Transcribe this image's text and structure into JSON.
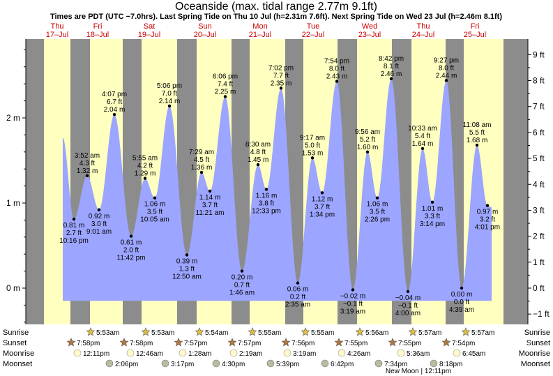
{
  "header": {
    "title": "Oceanside (max. tidal range 2.77m 9.1ft)",
    "subtitle": "Times are PDT (UTC −7.0hrs). Last Spring Tide on Thu 10 Jul (h=2.31m 7.6ft). Next Spring Tide on Wed 23 Jul (h=2.46m 8.1ft)"
  },
  "days": [
    {
      "name": "Thu",
      "date": "17–Jul",
      "x": 82
    },
    {
      "name": "Fri",
      "date": "18–Jul",
      "x": 140
    },
    {
      "name": "Sat",
      "date": "19–Jul",
      "x": 214
    },
    {
      "name": "Sun",
      "date": "20–Jul",
      "x": 294
    },
    {
      "name": "Mon",
      "date": "21–Jul",
      "x": 373
    },
    {
      "name": "Tue",
      "date": "22–Jul",
      "x": 449
    },
    {
      "name": "Wed",
      "date": "23–Jul",
      "x": 530
    },
    {
      "name": "Thu",
      "date": "24–Jul",
      "x": 607
    },
    {
      "name": "Fri",
      "date": "25–Jul",
      "x": 681
    }
  ],
  "chart_data": {
    "type": "area",
    "x_range": [
      0,
      792
    ],
    "ylim_m": [
      -0.45,
      2.95
    ],
    "meter_ticks": [
      {
        "v": 0,
        "label": "0 m"
      },
      {
        "v": 1,
        "label": "1 m"
      },
      {
        "v": 2,
        "label": "2 m"
      }
    ],
    "feet_ticks": [
      {
        "v": -1,
        "label": "−1 ft"
      },
      {
        "v": 0,
        "label": "0 ft"
      },
      {
        "v": 1,
        "label": "1 ft"
      },
      {
        "v": 2,
        "label": "2 ft"
      },
      {
        "v": 3,
        "label": "3 ft"
      },
      {
        "v": 4,
        "label": "4 ft"
      },
      {
        "v": 5,
        "label": "5 ft"
      },
      {
        "v": 6,
        "label": "6 ft"
      },
      {
        "v": 7,
        "label": "7 ft"
      },
      {
        "v": 8,
        "label": "8 ft"
      },
      {
        "v": 9,
        "label": "9 ft"
      }
    ],
    "night_bands": [
      [
        37,
        63
      ],
      [
        101,
        129
      ],
      [
        176,
        203
      ],
      [
        254,
        282
      ],
      [
        332,
        358
      ],
      [
        409,
        435
      ],
      [
        484,
        512
      ],
      [
        562,
        590
      ],
      [
        639,
        665
      ],
      [
        722,
        757
      ]
    ],
    "start": {
      "x": 90,
      "h": 1.77
    },
    "end": {
      "x": 705,
      "h": 0.95
    },
    "extremes": [
      {
        "x": 106,
        "h": 0.81,
        "m": "0.81 m",
        "ft": "2.7 ft",
        "time": "10:16 pm",
        "type": "low"
      },
      {
        "x": 125,
        "h": 1.32,
        "m": "1.32 m",
        "ft": "4.3 ft",
        "time": "3:52 am",
        "type": "high"
      },
      {
        "x": 142,
        "h": 0.92,
        "m": "0.92 m",
        "ft": "3.0 ft",
        "time": "9:01 am",
        "type": "low"
      },
      {
        "x": 164,
        "h": 2.04,
        "m": "2.04 m",
        "ft": "6.7 ft",
        "time": "4:07 pm",
        "type": "high"
      },
      {
        "x": 188,
        "h": 0.61,
        "m": "0.61 m",
        "ft": "2.0 ft",
        "time": "11:42 pm",
        "type": "low"
      },
      {
        "x": 208,
        "h": 1.29,
        "m": "1.29 m",
        "ft": "4.2 ft",
        "time": "5:55 am",
        "type": "high"
      },
      {
        "x": 222,
        "h": 1.06,
        "m": "1.06 m",
        "ft": "3.5 ft",
        "time": "10:05 am",
        "type": "low"
      },
      {
        "x": 243,
        "h": 2.14,
        "m": "2.14 m",
        "ft": "7.0 ft",
        "time": "5:06 pm",
        "type": "high"
      },
      {
        "x": 268,
        "h": 0.39,
        "m": "0.39 m",
        "ft": "1.3 ft",
        "time": "12:50 am",
        "type": "low"
      },
      {
        "x": 289,
        "h": 1.36,
        "m": "1.36 m",
        "ft": "4.5 ft",
        "time": "7:29 am",
        "type": "high"
      },
      {
        "x": 301,
        "h": 1.14,
        "m": "1.14 m",
        "ft": "3.7 ft",
        "time": "11:21 am",
        "type": "low"
      },
      {
        "x": 323,
        "h": 2.25,
        "m": "2.25 m",
        "ft": "7.4 ft",
        "time": "6:06 pm",
        "type": "high"
      },
      {
        "x": 347,
        "h": 0.2,
        "m": "0.20 m",
        "ft": "0.7 ft",
        "time": "1:46 am",
        "type": "low"
      },
      {
        "x": 370,
        "h": 1.45,
        "m": "1.45 m",
        "ft": "4.8 ft",
        "time": "8:30 am",
        "type": "high"
      },
      {
        "x": 382,
        "h": 1.16,
        "m": "1.16 m",
        "ft": "3.8 ft",
        "time": "12:33 pm",
        "type": "low"
      },
      {
        "x": 403,
        "h": 2.35,
        "m": "2.35 m",
        "ft": "7.7 ft",
        "time": "7:02 pm",
        "type": "high"
      },
      {
        "x": 427,
        "h": 0.06,
        "m": "0.06 m",
        "ft": "0.2 ft",
        "time": "2:35 am",
        "type": "low"
      },
      {
        "x": 448,
        "h": 1.53,
        "m": "1.53 m",
        "ft": "5.0 ft",
        "time": "9:17 am",
        "type": "high"
      },
      {
        "x": 462,
        "h": 1.12,
        "m": "1.12 m",
        "ft": "3.7 ft",
        "time": "1:34 pm",
        "type": "low"
      },
      {
        "x": 483,
        "h": 2.43,
        "m": "2.43 m",
        "ft": "8.0 ft",
        "time": "7:54 pm",
        "type": "high"
      },
      {
        "x": 506,
        "h": -0.02,
        "m": "−0.02 m",
        "ft": "−0.1 ft",
        "time": "3:19 am",
        "type": "low"
      },
      {
        "x": 527,
        "h": 1.6,
        "m": "1.60 m",
        "ft": "5.2 ft",
        "time": "9:56 am",
        "type": "high"
      },
      {
        "x": 541,
        "h": 1.06,
        "m": "1.06 m",
        "ft": "3.5 ft",
        "time": "2:26 pm",
        "type": "low"
      },
      {
        "x": 561,
        "h": 2.46,
        "m": "2.46 m",
        "ft": "8.1 ft",
        "time": "8:42 pm",
        "type": "high"
      },
      {
        "x": 585,
        "h": -0.04,
        "m": "−0.04 m",
        "ft": "−0.1 ft",
        "time": "4:00 am",
        "type": "low"
      },
      {
        "x": 606,
        "h": 1.64,
        "m": "1.64 m",
        "ft": "5.4 ft",
        "time": "10:33 am",
        "type": "high"
      },
      {
        "x": 620,
        "h": 1.01,
        "m": "1.01 m",
        "ft": "3.3 ft",
        "time": "3:14 pm",
        "type": "low"
      },
      {
        "x": 640,
        "h": 2.44,
        "m": "2.44 m",
        "ft": "8.0 ft",
        "time": "9:27 pm",
        "type": "high"
      },
      {
        "x": 662,
        "h": 0.0,
        "m": "0.00 m",
        "ft": "0.0 ft",
        "time": "4:39 am",
        "type": "low"
      },
      {
        "x": 684,
        "h": 1.68,
        "m": "1.68 m",
        "ft": "5.5 ft",
        "time": "11:08 am",
        "type": "high"
      },
      {
        "x": 699,
        "h": 0.97,
        "m": "0.97 m",
        "ft": "3.2 ft",
        "time": "4:01 pm",
        "type": "low"
      }
    ]
  },
  "astro": {
    "row_labels": [
      "Sunrise",
      "Sunset",
      "Moonrise",
      "Moonset"
    ],
    "sunrise": [
      {
        "x": 130,
        "time": "5:53am"
      },
      {
        "x": 209,
        "time": "5:53am"
      },
      {
        "x": 286,
        "time": "5:54am"
      },
      {
        "x": 362,
        "time": "5:55am"
      },
      {
        "x": 438,
        "time": "5:55am"
      },
      {
        "x": 516,
        "time": "5:56am"
      },
      {
        "x": 592,
        "time": "5:57am"
      },
      {
        "x": 668,
        "time": "5:57am"
      }
    ],
    "sunset": [
      {
        "x": 102,
        "time": "7:58pm"
      },
      {
        "x": 178,
        "time": "7:58pm"
      },
      {
        "x": 256,
        "time": "7:57pm"
      },
      {
        "x": 333,
        "time": "7:57pm"
      },
      {
        "x": 410,
        "time": "7:56pm"
      },
      {
        "x": 486,
        "time": "7:55pm"
      },
      {
        "x": 563,
        "time": "7:55pm"
      },
      {
        "x": 640,
        "time": "7:54pm"
      }
    ],
    "moonrise": [
      {
        "x": 111,
        "time": "12:11pm"
      },
      {
        "x": 187,
        "time": "12:46am"
      },
      {
        "x": 262,
        "time": "1:28am"
      },
      {
        "x": 335,
        "time": "2:19am"
      },
      {
        "x": 412,
        "time": "3:19am"
      },
      {
        "x": 490,
        "time": "4:26am"
      },
      {
        "x": 575,
        "time": "5:36am"
      },
      {
        "x": 655,
        "time": "6:45am"
      }
    ],
    "moonset": [
      {
        "x": 157,
        "time": "2:06pm"
      },
      {
        "x": 237,
        "time": "3:17pm"
      },
      {
        "x": 310,
        "time": "4:30pm"
      },
      {
        "x": 388,
        "time": "5:39pm"
      },
      {
        "x": 466,
        "time": "6:42pm"
      },
      {
        "x": 543,
        "time": "7:34pm"
      },
      {
        "x": 622,
        "time": "8:18pm"
      }
    ],
    "new_moon": {
      "x": 600,
      "text": "New Moon | 12:11pm"
    }
  },
  "colors": {
    "day": "#ffffc0",
    "night": "#8c8c8c",
    "water": "#9ca5ff",
    "frame": "#000000",
    "day_text": "#cc0000",
    "sun_fill": "#e0c040",
    "sunset_fill": "#b07840",
    "moon_light": "#fffac8",
    "moon_dark": "#b8bca0"
  }
}
